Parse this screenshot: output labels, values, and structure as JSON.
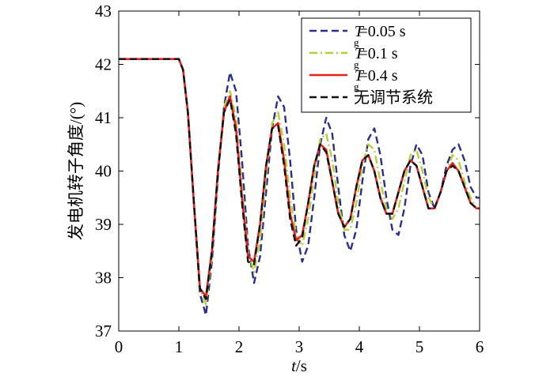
{
  "chart_data": {
    "type": "line",
    "xlabel_italic": "t",
    "xlabel_rest": "/s",
    "ylabel": "发电机转子角度/(°)",
    "xlim": [
      0,
      6
    ],
    "ylim": [
      37,
      43
    ],
    "xticks": [
      "0",
      "1",
      "2",
      "3",
      "4",
      "5",
      "6"
    ],
    "yticks": [
      "37",
      "38",
      "39",
      "40",
      "41",
      "42",
      "43"
    ],
    "grid": false,
    "legend_position": "top-right",
    "series": [
      {
        "name": "Tg=0.05 s",
        "legend_symbol": "T",
        "legend_subscript": "g",
        "legend_value": "=0.05 s",
        "color": "#2a2f8f",
        "dash": "dashed",
        "x": [
          0,
          1.0,
          1.07,
          1.15,
          1.25,
          1.35,
          1.45,
          1.55,
          1.65,
          1.75,
          1.85,
          1.95,
          2.05,
          2.15,
          2.25,
          2.35,
          2.45,
          2.55,
          2.65,
          2.75,
          2.85,
          2.95,
          3.05,
          3.15,
          3.25,
          3.35,
          3.45,
          3.55,
          3.65,
          3.75,
          3.85,
          3.95,
          4.05,
          4.15,
          4.25,
          4.35,
          4.45,
          4.55,
          4.65,
          4.75,
          4.85,
          4.95,
          5.05,
          5.15,
          5.25,
          5.35,
          5.45,
          5.55,
          5.65,
          5.75,
          5.85,
          5.95,
          6.0
        ],
        "y": [
          42.1,
          42.1,
          41.9,
          41.1,
          39.4,
          37.7,
          37.3,
          38.3,
          39.9,
          41.2,
          41.85,
          41.5,
          40.2,
          38.6,
          37.9,
          38.4,
          39.6,
          40.8,
          41.4,
          41.2,
          40.2,
          38.9,
          38.3,
          38.6,
          39.5,
          40.5,
          41.0,
          40.7,
          39.7,
          38.8,
          38.5,
          38.9,
          39.8,
          40.6,
          40.8,
          40.3,
          39.5,
          38.9,
          38.8,
          39.3,
          40.1,
          40.5,
          40.3,
          39.6,
          39.3,
          39.6,
          40.1,
          40.4,
          40.5,
          40.2,
          39.7,
          39.5,
          39.5
        ]
      },
      {
        "name": "Tg=0.1 s",
        "legend_symbol": "T",
        "legend_subscript": "g",
        "legend_value": "=0.1 s",
        "color": "#b5cf3a",
        "dash": "dashdot",
        "x": [
          0,
          1.0,
          1.07,
          1.15,
          1.25,
          1.35,
          1.45,
          1.55,
          1.65,
          1.75,
          1.85,
          1.95,
          2.05,
          2.15,
          2.25,
          2.35,
          2.45,
          2.55,
          2.65,
          2.75,
          2.85,
          2.95,
          3.05,
          3.15,
          3.25,
          3.35,
          3.45,
          3.55,
          3.65,
          3.75,
          3.85,
          3.95,
          4.05,
          4.15,
          4.25,
          4.35,
          4.45,
          4.55,
          4.65,
          4.75,
          4.85,
          4.95,
          5.05,
          5.15,
          5.25,
          5.35,
          5.45,
          5.55,
          5.65,
          5.75,
          5.85,
          5.95,
          6.0
        ],
        "y": [
          42.1,
          42.1,
          41.9,
          41.1,
          39.4,
          37.8,
          37.5,
          38.4,
          40.0,
          41.2,
          41.5,
          41.0,
          39.7,
          38.5,
          38.1,
          38.7,
          39.9,
          40.9,
          41.1,
          40.5,
          39.5,
          38.8,
          38.6,
          39.1,
          39.9,
          40.6,
          40.7,
          40.2,
          39.4,
          38.9,
          38.9,
          39.4,
          40.1,
          40.5,
          40.4,
          39.8,
          39.3,
          39.1,
          39.3,
          39.8,
          40.3,
          40.4,
          40.0,
          39.5,
          39.3,
          39.6,
          40.0,
          40.3,
          40.2,
          39.8,
          39.5,
          39.3,
          39.3
        ]
      },
      {
        "name": "Tg=0.4 s",
        "legend_symbol": "T",
        "legend_subscript": "g",
        "legend_value": "=0.4 s",
        "color": "#e8201e",
        "dash": "solid",
        "x": [
          0,
          1.0,
          1.07,
          1.15,
          1.25,
          1.35,
          1.45,
          1.55,
          1.65,
          1.75,
          1.85,
          1.95,
          2.05,
          2.15,
          2.25,
          2.35,
          2.45,
          2.55,
          2.65,
          2.75,
          2.85,
          2.95,
          3.05,
          3.15,
          3.25,
          3.35,
          3.45,
          3.55,
          3.65,
          3.75,
          3.85,
          3.95,
          4.05,
          4.15,
          4.25,
          4.35,
          4.45,
          4.55,
          4.65,
          4.75,
          4.85,
          4.95,
          5.05,
          5.15,
          5.25,
          5.35,
          5.45,
          5.55,
          5.65,
          5.75,
          5.85,
          5.95,
          6.0
        ],
        "y": [
          42.1,
          42.1,
          41.9,
          41.1,
          39.4,
          37.8,
          37.65,
          38.5,
          40.0,
          41.1,
          41.4,
          40.8,
          39.5,
          38.4,
          38.3,
          39.0,
          40.1,
          40.8,
          40.9,
          40.2,
          39.2,
          38.7,
          38.8,
          39.4,
          40.1,
          40.5,
          40.4,
          39.8,
          39.2,
          38.95,
          39.1,
          39.7,
          40.2,
          40.3,
          40.0,
          39.5,
          39.2,
          39.2,
          39.6,
          40.0,
          40.2,
          40.1,
          39.7,
          39.3,
          39.3,
          39.6,
          40.0,
          40.15,
          40.0,
          39.7,
          39.4,
          39.3,
          39.3
        ]
      },
      {
        "name": "无调节系统",
        "color": "#111111",
        "dash": "dashed",
        "x": [
          0,
          1.0,
          1.07,
          1.15,
          1.25,
          1.35,
          1.45,
          1.55,
          1.65,
          1.75,
          1.85,
          1.95,
          2.05,
          2.15,
          2.25,
          2.35,
          2.45,
          2.55,
          2.65,
          2.75,
          2.85,
          2.95,
          3.05,
          3.15,
          3.25,
          3.35,
          3.45,
          3.55,
          3.65,
          3.75,
          3.85,
          3.95,
          4.05,
          4.15,
          4.25,
          4.35,
          4.45,
          4.55,
          4.65,
          4.75,
          4.85,
          4.95,
          5.05,
          5.15,
          5.25,
          5.35,
          5.45,
          5.55,
          5.65,
          5.75,
          5.85,
          5.95,
          6.0
        ],
        "y": [
          42.1,
          42.1,
          41.9,
          41.1,
          39.4,
          37.8,
          37.6,
          38.5,
          40.0,
          41.1,
          41.35,
          40.7,
          39.4,
          38.3,
          38.25,
          39.0,
          40.1,
          40.8,
          40.85,
          40.1,
          39.1,
          38.6,
          38.75,
          39.4,
          40.1,
          40.5,
          40.35,
          39.8,
          39.2,
          38.95,
          39.1,
          39.7,
          40.2,
          40.3,
          40.0,
          39.5,
          39.2,
          39.2,
          39.6,
          40.0,
          40.2,
          40.1,
          39.7,
          39.3,
          39.3,
          39.6,
          40.0,
          40.1,
          40.0,
          39.7,
          39.4,
          39.3,
          39.3
        ]
      }
    ]
  }
}
